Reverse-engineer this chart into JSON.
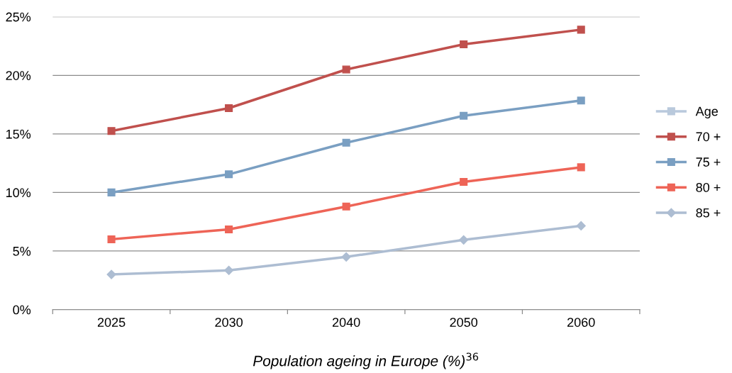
{
  "chart_data": {
    "type": "line",
    "title": "Population ageing in Europe (%)$^{36}$",
    "categories": [
      "2025",
      "2030",
      "2040",
      "2050",
      "2060"
    ],
    "series": [
      {
        "name": "Age",
        "color": "#b9c9dc",
        "marker": "square",
        "values": [
          null,
          null,
          null,
          null,
          null
        ]
      },
      {
        "name": "70 +",
        "color": "#c0504d",
        "marker": "square",
        "values": [
          15.25,
          17.2,
          20.5,
          22.65,
          23.9
        ]
      },
      {
        "name": "75 +",
        "color": "#7a9fc2",
        "marker": "square",
        "values": [
          10.0,
          11.55,
          14.25,
          16.55,
          17.85
        ]
      },
      {
        "name": "80 +",
        "color": "#ee6457",
        "marker": "square",
        "values": [
          6.0,
          6.85,
          8.8,
          10.9,
          12.15
        ]
      },
      {
        "name": "85 +",
        "color": "#adbdd2",
        "marker": "diamond",
        "values": [
          3.0,
          3.35,
          4.5,
          5.95,
          7.15
        ]
      }
    ],
    "ylim": [
      0,
      25
    ],
    "yticks": [
      {
        "value": 0,
        "label": "0%"
      },
      {
        "value": 5,
        "label": "5%"
      },
      {
        "value": 10,
        "label": "10%"
      },
      {
        "value": 15,
        "label": "15%"
      },
      {
        "value": 20,
        "label": "20%"
      },
      {
        "value": 25,
        "label": "25%"
      }
    ],
    "grid": "y",
    "legend": "right",
    "line_style": "solid"
  }
}
